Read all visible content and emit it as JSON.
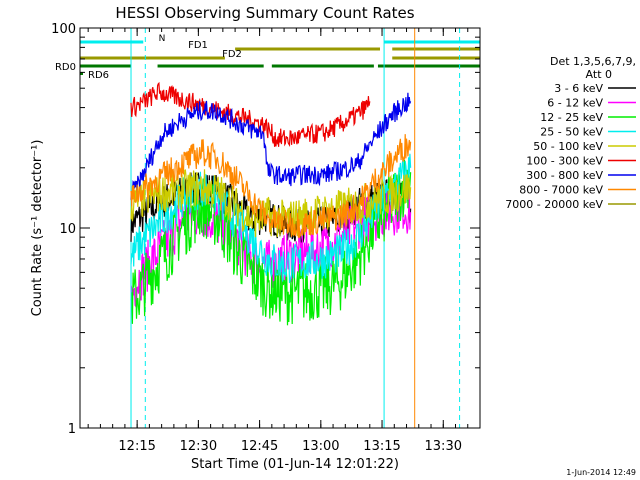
{
  "chart_data": {
    "type": "line",
    "title": "HESSI Observing Summary Count Rates",
    "xlabel": "Start Time (01-Jun-14 12:01:22)",
    "ylabel": "Count Rate (s⁻¹ detector⁻¹)",
    "yscale": "log",
    "ylim": [
      1,
      100
    ],
    "xlim_min": [
      0,
      98
    ],
    "x_ticks": [
      {
        "min": 14,
        "label": "12:15"
      },
      {
        "min": 29,
        "label": "12:30"
      },
      {
        "min": 44,
        "label": "12:45"
      },
      {
        "min": 59,
        "label": "13:00"
      },
      {
        "min": 74,
        "label": "13:15"
      },
      {
        "min": 89,
        "label": "13:30"
      }
    ],
    "y_ticks": [
      {
        "v": 1,
        "label": "1"
      },
      {
        "v": 10,
        "label": "10"
      },
      {
        "v": 100,
        "label": "100"
      }
    ],
    "grid": false,
    "legend_position": "right",
    "legend_header": [
      "Det 1,3,5,6,7,9,",
      "Att 0"
    ],
    "series": [
      {
        "name": "3 - 6 keV",
        "color": "#000000",
        "points": [
          [
            12.5,
            10.5
          ],
          [
            14,
            11
          ],
          [
            20,
            13.5
          ],
          [
            25,
            15
          ],
          [
            30,
            16
          ],
          [
            34,
            15
          ],
          [
            38,
            13
          ],
          [
            42,
            11
          ],
          [
            46,
            11.5
          ],
          [
            50,
            10.5
          ],
          [
            55,
            10
          ],
          [
            60,
            10.5
          ],
          [
            64,
            11
          ],
          [
            68,
            13
          ],
          [
            72,
            14
          ],
          [
            76,
            14.5
          ],
          [
            78,
            15.5
          ],
          [
            80,
            13.5
          ],
          [
            81,
            12.5
          ]
        ]
      },
      {
        "name": "6 - 12 keV",
        "color": "#ff00ff",
        "points": [
          [
            12.5,
            4.5
          ],
          [
            14,
            5.5
          ],
          [
            20,
            8
          ],
          [
            25,
            11
          ],
          [
            30,
            12
          ],
          [
            34,
            10.5
          ],
          [
            38,
            9
          ],
          [
            42,
            7
          ],
          [
            46,
            6.5
          ],
          [
            50,
            7
          ],
          [
            55,
            7.5
          ],
          [
            60,
            8
          ],
          [
            64,
            9
          ],
          [
            68,
            10.5
          ],
          [
            72,
            11.5
          ],
          [
            76,
            12
          ],
          [
            79,
            13
          ],
          [
            81,
            12
          ]
        ]
      },
      {
        "name": "12 - 25 keV",
        "color": "#00ee00",
        "points": [
          [
            12.5,
            4.3
          ],
          [
            14,
            4.6
          ],
          [
            20,
            7
          ],
          [
            25,
            10
          ],
          [
            30,
            13
          ],
          [
            34,
            11
          ],
          [
            38,
            8
          ],
          [
            42,
            6
          ],
          [
            46,
            5
          ],
          [
            50,
            4.7
          ],
          [
            55,
            4.8
          ],
          [
            60,
            5
          ],
          [
            64,
            5.5
          ],
          [
            68,
            7
          ],
          [
            72,
            10
          ],
          [
            76,
            13
          ],
          [
            79,
            16
          ],
          [
            81,
            19
          ]
        ]
      },
      {
        "name": "25 - 50 keV",
        "color": "#00eeee",
        "points": [
          [
            12.5,
            7
          ],
          [
            14,
            8
          ],
          [
            20,
            11
          ],
          [
            25,
            14
          ],
          [
            30,
            16
          ],
          [
            34,
            14
          ],
          [
            38,
            11
          ],
          [
            42,
            9
          ],
          [
            46,
            7
          ],
          [
            50,
            6.5
          ],
          [
            55,
            6.8
          ],
          [
            60,
            7
          ],
          [
            64,
            7.5
          ],
          [
            68,
            9
          ],
          [
            72,
            12
          ],
          [
            76,
            15
          ],
          [
            79,
            18
          ],
          [
            81,
            20
          ]
        ]
      },
      {
        "name": "50 - 100 keV",
        "color": "#cccc00",
        "points": [
          [
            12.5,
            13
          ],
          [
            14,
            13.5
          ],
          [
            20,
            15
          ],
          [
            25,
            15.5
          ],
          [
            30,
            16
          ],
          [
            34,
            15
          ],
          [
            38,
            13
          ],
          [
            42,
            11
          ],
          [
            46,
            11.5
          ],
          [
            50,
            11
          ],
          [
            55,
            11.5
          ],
          [
            60,
            12
          ],
          [
            64,
            12.5
          ],
          [
            68,
            13
          ],
          [
            72,
            14
          ],
          [
            76,
            14.5
          ],
          [
            79,
            15.5
          ],
          [
            81,
            16
          ]
        ]
      },
      {
        "name": "100 - 300 keV",
        "color": "#ee0000",
        "points": [
          [
            12.5,
            40
          ],
          [
            14,
            41
          ],
          [
            16,
            43
          ],
          [
            18,
            46
          ],
          [
            19,
            48
          ],
          [
            45,
            33
          ],
          [
            48,
            28
          ],
          [
            52,
            28
          ],
          [
            56,
            29
          ],
          [
            60,
            30
          ],
          [
            64,
            33
          ],
          [
            68,
            37
          ],
          [
            70,
            40
          ],
          [
            71,
            43
          ]
        ]
      },
      {
        "name": "300 - 800 keV",
        "color": "#0000ee",
        "points": [
          [
            12.5,
            15
          ],
          [
            14,
            16
          ],
          [
            20,
            29
          ],
          [
            25,
            35
          ],
          [
            30,
            39
          ],
          [
            34,
            38
          ],
          [
            38,
            34
          ],
          [
            42,
            31
          ],
          [
            45,
            30
          ],
          [
            46,
            19
          ],
          [
            50,
            18
          ],
          [
            55,
            18.5
          ],
          [
            60,
            18.5
          ],
          [
            64,
            19.5
          ],
          [
            68,
            21
          ],
          [
            72,
            28
          ],
          [
            76,
            36
          ],
          [
            79,
            41
          ],
          [
            81,
            43
          ]
        ]
      },
      {
        "name": "800 - 7000 keV",
        "color": "#ff8800",
        "points": [
          [
            12.5,
            14
          ],
          [
            14,
            15
          ],
          [
            20,
            18
          ],
          [
            25,
            21
          ],
          [
            30,
            24
          ],
          [
            34,
            22
          ],
          [
            38,
            18
          ],
          [
            42,
            14
          ],
          [
            46,
            11
          ],
          [
            50,
            10.5
          ],
          [
            55,
            10.5
          ],
          [
            60,
            11
          ],
          [
            64,
            11.5
          ],
          [
            68,
            13
          ],
          [
            72,
            17
          ],
          [
            76,
            21
          ],
          [
            79,
            25
          ],
          [
            81,
            27
          ]
        ]
      },
      {
        "name": "7000 - 20000 keV",
        "color": "#999900",
        "points": []
      }
    ],
    "flags": [
      {
        "label": "N",
        "color": "#00eeee",
        "segments": [
          [
            0,
            15.5
          ],
          [
            74.5,
            98
          ]
        ]
      },
      {
        "label": "FD1",
        "color": "#999900",
        "segments": [
          [
            38,
            73.5
          ],
          [
            76.5,
            98
          ]
        ]
      },
      {
        "label": "FD2",
        "color": "#999900",
        "segments": [
          [
            0,
            35.5
          ],
          [
            76.5,
            98
          ]
        ]
      },
      {
        "label": "RD0",
        "color": "#007700",
        "segments": [
          [
            0,
            12.5
          ],
          [
            19,
            45
          ],
          [
            47,
            72
          ],
          [
            73,
            98
          ]
        ]
      },
      {
        "label": "RD6",
        "color": "#007700",
        "segments": []
      }
    ],
    "vlines_cyan_solid_min": [
      12.5,
      74.5
    ],
    "vlines_cyan_dashed_min": [
      16,
      93
    ],
    "vlines_orange_min": [
      82
    ]
  },
  "footer_timestamp": "1-Jun-2014 12:49"
}
